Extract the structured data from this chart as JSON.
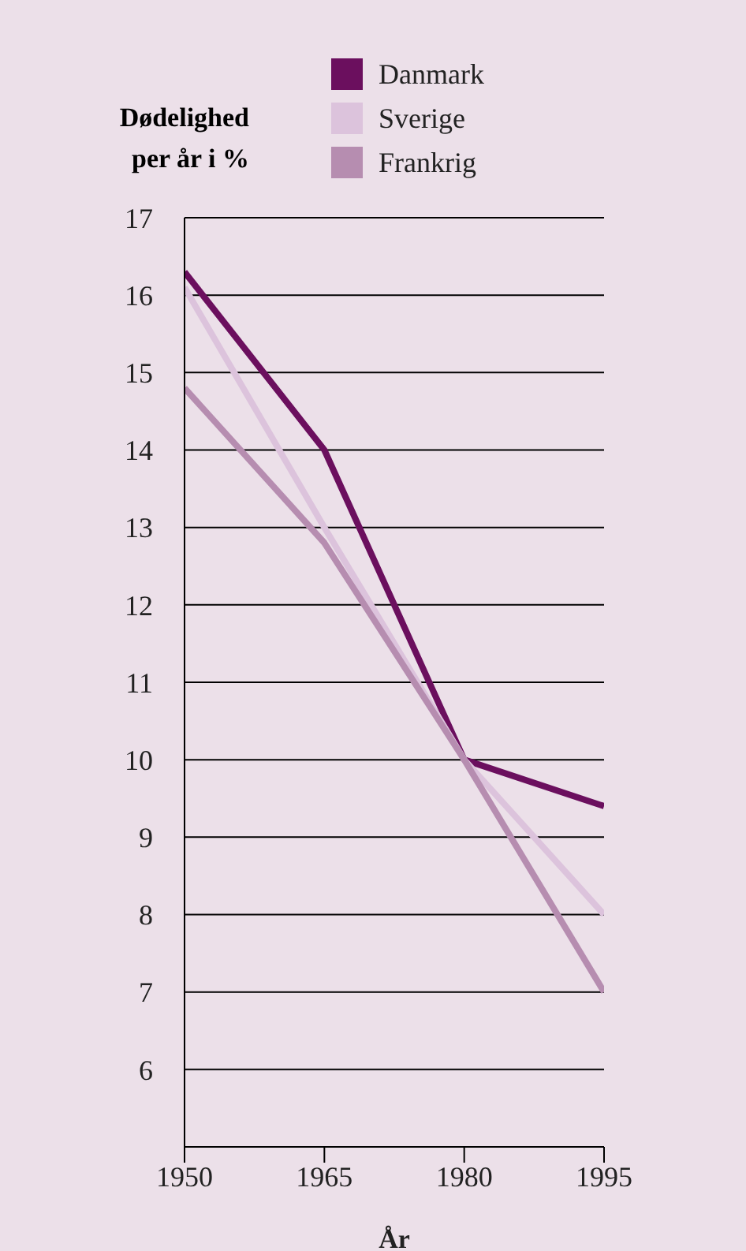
{
  "chart_data": {
    "type": "line",
    "xlabel": "År",
    "ylabel": "Dødelighed\nper år i %",
    "x": [
      1950,
      1965,
      1980,
      1995
    ],
    "series": [
      {
        "name": "Danmark",
        "color": "#6b0f5e",
        "values": [
          16.3,
          14.0,
          10.0,
          9.4
        ]
      },
      {
        "name": "Sverige",
        "color": "#dcc3dc",
        "values": [
          16.1,
          13.0,
          10.0,
          8.0
        ]
      },
      {
        "name": "Frankrig",
        "color": "#b68db0",
        "values": [
          14.8,
          12.8,
          10.0,
          7.0
        ]
      }
    ],
    "xlim": [
      1950,
      1995
    ],
    "xticks": [
      1950,
      1965,
      1980,
      1995
    ],
    "ylim": [
      5,
      17
    ],
    "yticks": [
      {
        "value": 5,
        "label": null
      },
      6,
      7,
      8,
      9,
      10,
      11,
      12,
      13,
      14,
      15,
      16,
      17
    ],
    "grid": "y",
    "legend": "top",
    "marker": "none",
    "line_style": "solid"
  }
}
